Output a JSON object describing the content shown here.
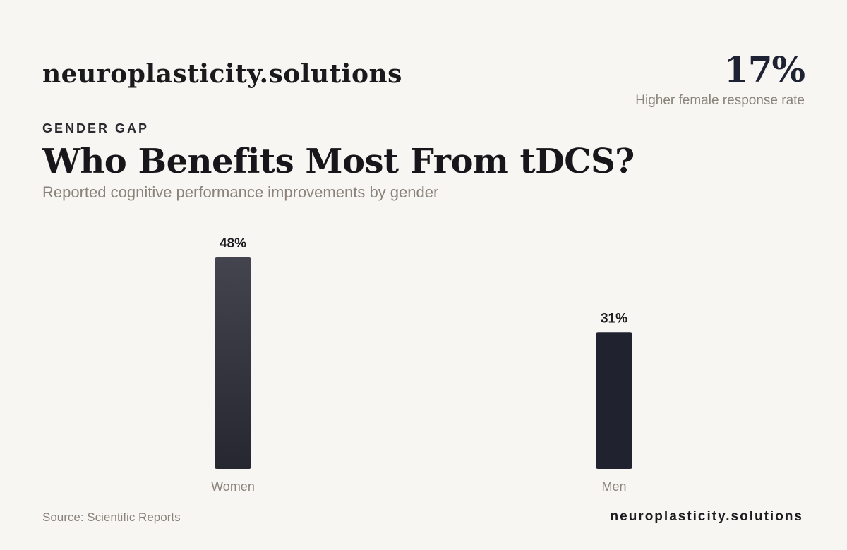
{
  "header": {
    "brand": "neuroplasticity.solutions",
    "stat_value": "17%",
    "stat_label": "Higher female response rate",
    "eyebrow": "GENDER GAP",
    "title": "Who Benefits Most From tDCS?",
    "subtitle": "Reported cognitive performance improvements by gender"
  },
  "chart_data": {
    "type": "bar",
    "categories": [
      "Women",
      "Men"
    ],
    "values": [
      48,
      31
    ],
    "value_labels": [
      "48%",
      "31%"
    ],
    "title": "Who Benefits Most From tDCS?",
    "subtitle": "Reported cognitive performance improvements by gender",
    "xlabel": "",
    "ylabel": "",
    "unit": "%",
    "ylim": [
      0,
      48
    ],
    "grid": false,
    "legend": "none",
    "colors": {
      "bar_top": "#43444e",
      "bar_bottom": "#262730",
      "bar_men": "#20232f",
      "baseline": "#d8d4cf",
      "value_label": "#1c1b1f",
      "category_label": "#8a837b"
    }
  },
  "footer": {
    "source": "Source: Scientific Reports",
    "brand": "neuroplasticity.solutions"
  }
}
